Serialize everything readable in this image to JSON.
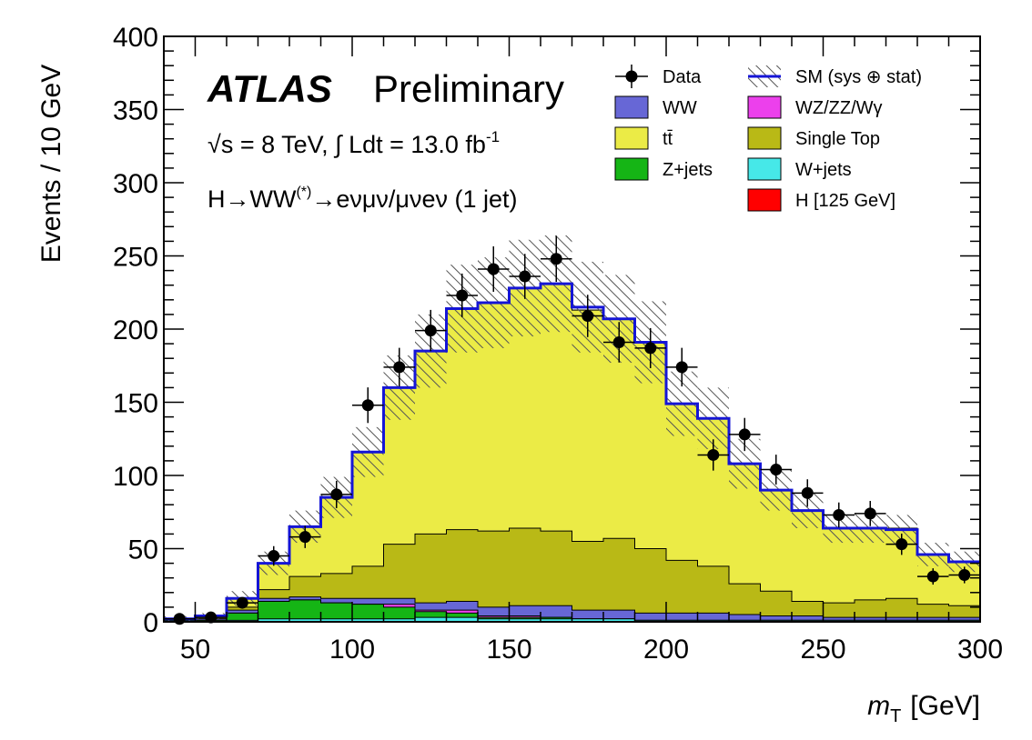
{
  "chart_data": {
    "type": "bar",
    "stacked_histogram": true,
    "xlabel": "m",
    "xlabel_sub": "T",
    "xlabel_unit": "[GeV]",
    "ylabel": "Events / 10 GeV",
    "xlim": [
      40,
      300
    ],
    "ylim": [
      0,
      400
    ],
    "xticks": [
      50,
      100,
      150,
      200,
      250,
      300
    ],
    "yticks": [
      0,
      50,
      100,
      150,
      200,
      250,
      300,
      350,
      400
    ],
    "grid": false,
    "legend_position": "top-right",
    "annotations": {
      "atlas": "ATLAS",
      "preliminary": "Preliminary",
      "energy_prefix": "√s = 8 TeV, ∫ Ldt = 13.0 fb",
      "energy_sup": "-1",
      "channel_a": "H→WW",
      "channel_sup": "(*)",
      "channel_b": "→eνμν/μνeν (1 jet)"
    },
    "bin_edges": [
      40,
      50,
      60,
      70,
      80,
      90,
      100,
      110,
      120,
      130,
      140,
      150,
      160,
      170,
      180,
      190,
      200,
      210,
      220,
      230,
      240,
      250,
      260,
      270,
      280,
      290,
      300
    ],
    "series": [
      {
        "name": "W+jets",
        "color": "#46e8e8",
        "values": [
          0,
          0,
          1,
          2,
          2,
          2,
          2,
          2,
          3,
          3,
          2,
          2,
          2,
          2,
          2,
          1,
          1,
          1,
          1,
          1,
          1,
          1,
          1,
          1,
          1,
          1
        ]
      },
      {
        "name": "Z+jets",
        "color": "#15b515",
        "values": [
          1,
          1,
          5,
          12,
          13,
          11,
          10,
          8,
          4,
          3,
          1,
          1,
          1,
          0,
          0,
          0,
          0,
          0,
          0,
          0,
          0,
          0,
          0,
          0,
          0,
          0
        ]
      },
      {
        "name": "WZ/ZZ/Wγ",
        "color": "#ec40ec",
        "values": [
          0,
          0,
          0,
          0,
          0,
          0,
          0,
          2,
          1,
          2,
          1,
          1,
          0,
          0,
          0,
          0,
          0,
          0,
          0,
          0,
          0,
          0,
          0,
          0,
          0,
          0
        ]
      },
      {
        "name": "WW",
        "color": "#6767d6",
        "values": [
          1,
          1,
          2,
          2,
          2,
          3,
          4,
          4,
          5,
          6,
          6,
          7,
          8,
          6,
          6,
          5,
          5,
          5,
          4,
          3,
          3,
          2,
          2,
          2,
          2,
          2
        ]
      },
      {
        "name": "Single Top",
        "color": "#b9b916",
        "values": [
          0,
          0,
          2,
          6,
          14,
          17,
          22,
          37,
          47,
          49,
          52,
          53,
          51,
          47,
          49,
          44,
          36,
          32,
          21,
          17,
          10,
          10,
          12,
          13,
          9,
          8
        ]
      },
      {
        "name": "tt̄",
        "color": "#ebeb46",
        "values": [
          0,
          2,
          6,
          18,
          34,
          52,
          78,
          107,
          125,
          151,
          156,
          164,
          169,
          158,
          150,
          141,
          107,
          101,
          82,
          69,
          62,
          51,
          49,
          48,
          34,
          30
        ]
      },
      {
        "name": "H [125 GeV]",
        "color": "#ff0000",
        "values": [
          0,
          0,
          0,
          0,
          0,
          0,
          0,
          0,
          0,
          0,
          0,
          0,
          0,
          0,
          0,
          0,
          0,
          0,
          0,
          0,
          0,
          0,
          0,
          0,
          0,
          0
        ]
      }
    ],
    "sm_total": {
      "name": "SM (sys ⊕ stat)",
      "color": "#1515d6",
      "values": [
        2,
        4,
        16,
        40,
        65,
        85,
        116,
        160,
        185,
        214,
        218,
        228,
        231,
        215,
        207,
        191,
        149,
        139,
        108,
        90,
        76,
        64,
        64,
        63,
        46,
        41
      ]
    },
    "sm_uncertainty": [
      2,
      2,
      5,
      8,
      11,
      14,
      17,
      22,
      25,
      30,
      31,
      33,
      33,
      31,
      30,
      28,
      22,
      21,
      17,
      14,
      12,
      10,
      10,
      10,
      8,
      7
    ],
    "data": {
      "name": "Data",
      "color": "#000000",
      "x": [
        45,
        55,
        65,
        75,
        85,
        95,
        105,
        115,
        125,
        135,
        145,
        155,
        165,
        175,
        185,
        195,
        205,
        215,
        225,
        235,
        245,
        255,
        265,
        275,
        285,
        295
      ],
      "y": [
        2,
        3,
        13,
        45,
        58,
        87,
        148,
        174,
        199,
        223,
        241,
        236,
        248,
        209,
        191,
        187,
        174,
        114,
        128,
        104,
        88,
        73,
        74,
        53,
        31,
        32
      ]
    },
    "legend": [
      {
        "label": "Data",
        "kind": "data"
      },
      {
        "label": "SM (sys ⊕ stat)",
        "kind": "sm"
      },
      {
        "label": "WW",
        "kind": "fill",
        "color": "#6767d6"
      },
      {
        "label": "WZ/ZZ/Wγ",
        "kind": "fill",
        "color": "#ec40ec"
      },
      {
        "label": "tt̄",
        "kind": "fill",
        "color": "#ebeb46"
      },
      {
        "label": "Single Top",
        "kind": "fill",
        "color": "#b9b916"
      },
      {
        "label": "Z+jets",
        "kind": "fill",
        "color": "#15b515"
      },
      {
        "label": "W+jets",
        "kind": "fill",
        "color": "#46e8e8"
      },
      {
        "label": "",
        "kind": "spacer"
      },
      {
        "label": "H [125 GeV]",
        "kind": "fill",
        "color": "#ff0000"
      }
    ]
  }
}
